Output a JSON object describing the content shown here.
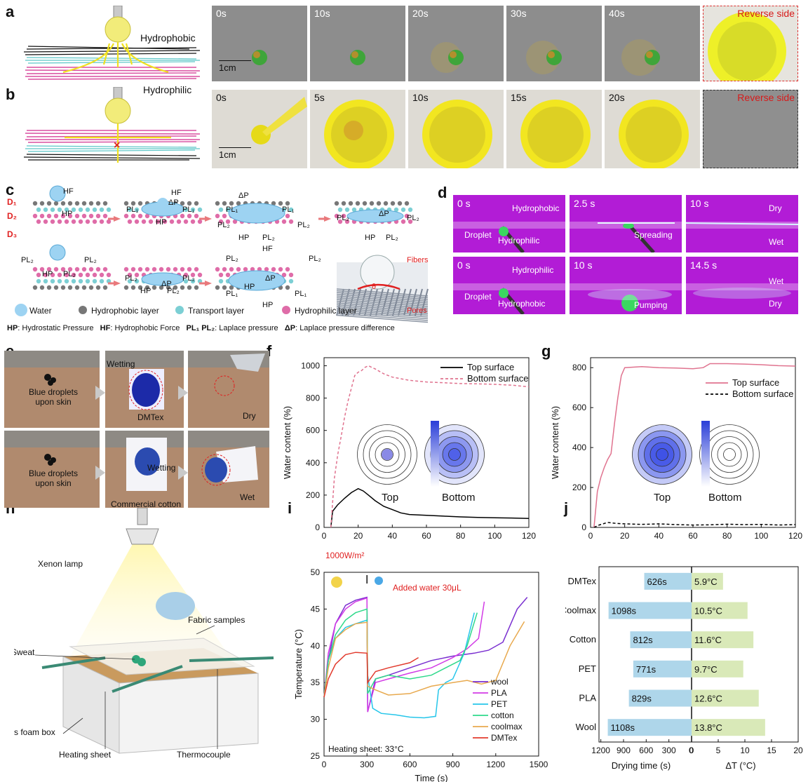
{
  "panel_letters": {
    "a": "a",
    "b": "b",
    "c": "c",
    "d": "d",
    "e": "e",
    "f": "f",
    "g": "g",
    "h": "h",
    "i": "i",
    "j": "j"
  },
  "panel_a": {
    "hydrophobic": "Hydrophobic",
    "frames": [
      "0s",
      "10s",
      "20s",
      "30s",
      "40s"
    ],
    "reverse": "Reverse side",
    "scale": "1cm"
  },
  "panel_b": {
    "hydrophilic": "Hydrophilic",
    "frames": [
      "0s",
      "5s",
      "10s",
      "15s",
      "20s"
    ],
    "reverse": "Reverse side",
    "scale": "1cm"
  },
  "panel_c": {
    "D1": "D₁",
    "D2": "D₂",
    "D3": "D₃",
    "HF": "HF",
    "HP": "HP",
    "PL1": "PL₁",
    "PL2": "PL₂",
    "dP": "ΔP",
    "fibers": "Fibers",
    "pores": "Pores",
    "theta": "θ",
    "legend": [
      "Water",
      "Hydrophobic layer",
      "Transport layer",
      "Hydrophilic layer"
    ],
    "abbrev_HP": "HP",
    "abbrev_HP_text": ": Hydrostatic Pressure",
    "abbrev_HF": "HF",
    "abbrev_HF_text": ": Hydrophobic Force",
    "abbrev_PL": "PL₁  PL₂",
    "abbrev_PL_text": ": Laplace pressure",
    "abbrev_dP": "ΔP",
    "abbrev_dP_text": ": Laplace pressure difference"
  },
  "panel_d": {
    "top": [
      {
        "time": "0 s",
        "labels": [
          "Hydrophobic",
          "Droplet",
          "Hydrophilic"
        ]
      },
      {
        "time": "2.5 s",
        "labels": [
          "Spreading"
        ]
      },
      {
        "time": "10 s",
        "labels": [
          "Dry",
          "Wet"
        ]
      }
    ],
    "bottom": [
      {
        "time": "0 s",
        "labels": [
          "Hydrophilic",
          "Droplet",
          "Hydrophobic"
        ]
      },
      {
        "time": "10 s",
        "labels": [
          "Pumping"
        ]
      },
      {
        "time": "14.5 s",
        "labels": [
          "Wet",
          "Dry"
        ]
      }
    ]
  },
  "panel_e": {
    "top": [
      "Blue droplets\nupon skin",
      "Wetting",
      "DMTex",
      "Dry"
    ],
    "bottom": [
      "Blue droplets\nupon skin",
      "Wetting",
      "Commercial cotton",
      "Wet"
    ]
  },
  "panel_h": {
    "labels": [
      "Xenon lamp",
      "Fabric samples",
      "Sweat",
      "Ps foam box",
      "Heating sheet",
      "Thermocouple"
    ]
  },
  "chart_data": [
    {
      "id": "f",
      "type": "line",
      "xlabel": "Time (s)",
      "ylabel": "Water content (%)",
      "xlim": [
        0,
        120
      ],
      "ylim": [
        0,
        1050
      ],
      "xticks": [
        0,
        20,
        40,
        60,
        80,
        100,
        120
      ],
      "yticks": [
        0,
        200,
        400,
        600,
        800,
        1000
      ],
      "legend": "top-right",
      "inset_labels": [
        "Top",
        "Bottom"
      ],
      "series": [
        {
          "name": "Top surface",
          "style": "solid",
          "color": "#000000",
          "x": [
            4,
            5,
            8,
            12,
            16,
            20,
            23,
            26,
            30,
            35,
            40,
            45,
            50,
            60,
            70,
            80,
            90,
            100,
            110,
            120
          ],
          "y": [
            0,
            100,
            140,
            180,
            215,
            240,
            225,
            200,
            165,
            130,
            110,
            90,
            80,
            75,
            70,
            65,
            62,
            60,
            58,
            55
          ]
        },
        {
          "name": "Bottom surface",
          "style": "dashed",
          "color": "#e0738f",
          "x": [
            4,
            6,
            8,
            10,
            12,
            14,
            16,
            18,
            20,
            22,
            24,
            26,
            30,
            35,
            40,
            50,
            60,
            70,
            80,
            90,
            100,
            110,
            120
          ],
          "y": [
            0,
            300,
            450,
            560,
            680,
            780,
            860,
            940,
            960,
            970,
            990,
            1000,
            980,
            950,
            930,
            910,
            900,
            895,
            890,
            888,
            885,
            880,
            870
          ]
        }
      ]
    },
    {
      "id": "g",
      "type": "line",
      "xlabel": "Time (s)",
      "ylabel": "Water content (%)",
      "xlim": [
        0,
        120
      ],
      "ylim": [
        0,
        850
      ],
      "xticks": [
        0,
        20,
        40,
        60,
        80,
        100,
        120
      ],
      "yticks": [
        0,
        200,
        400,
        600,
        800
      ],
      "legend": "top-right",
      "inset_labels": [
        "Top",
        "Bottom"
      ],
      "series": [
        {
          "name": "Top surface",
          "style": "solid",
          "color": "#e0738f",
          "x": [
            2,
            4,
            6,
            8,
            10,
            12,
            14,
            16,
            18,
            20,
            30,
            40,
            50,
            60,
            66,
            70,
            80,
            90,
            100,
            110,
            120
          ],
          "y": [
            0,
            180,
            250,
            300,
            340,
            370,
            520,
            650,
            760,
            800,
            805,
            800,
            798,
            795,
            800,
            820,
            820,
            818,
            815,
            810,
            808
          ]
        },
        {
          "name": "Bottom surface",
          "style": "dashed",
          "color": "#000000",
          "x": [
            2,
            5,
            10,
            15,
            20,
            30,
            40,
            50,
            60,
            70,
            80,
            90,
            100,
            110,
            120
          ],
          "y": [
            0,
            12,
            25,
            20,
            18,
            15,
            18,
            14,
            12,
            13,
            16,
            14,
            15,
            12,
            14
          ]
        }
      ]
    },
    {
      "id": "i",
      "type": "line",
      "xlabel": "Time (s)",
      "ylabel": "Temperature (°C)",
      "xlim": [
        0,
        1500
      ],
      "ylim": [
        25,
        50
      ],
      "xticks": [
        0,
        300,
        600,
        900,
        1200,
        1500
      ],
      "yticks": [
        25,
        30,
        35,
        40,
        45,
        50
      ],
      "annotation_power": "1000W/m²",
      "annotation_water": "Added water 30μL",
      "annotation_heat": "Heating sheet: 33°C",
      "legend": "bottom-right",
      "series": [
        {
          "name": "wool",
          "color": "#7a2fd0",
          "x": [
            0,
            30,
            80,
            150,
            220,
            300,
            305,
            360,
            450,
            600,
            750,
            900,
            1050,
            1150,
            1250,
            1350,
            1420
          ],
          "y": [
            33,
            38,
            43,
            45.5,
            46.2,
            46.6,
            31,
            35.5,
            36,
            37,
            38,
            38.6,
            39,
            39.4,
            40.5,
            45,
            46.6
          ]
        },
        {
          "name": "PLA",
          "color": "#d23be6",
          "x": [
            0,
            30,
            80,
            150,
            220,
            300,
            305,
            360,
            450,
            600,
            750,
            900,
            1000,
            1080,
            1120
          ],
          "y": [
            33,
            39,
            43,
            45,
            46,
            46.5,
            31,
            35,
            35.5,
            36.3,
            37,
            38.4,
            39.6,
            41,
            46
          ]
        },
        {
          "name": "PET",
          "color": "#26c6ea",
          "x": [
            0,
            30,
            80,
            150,
            220,
            300,
            305,
            340,
            400,
            500,
            600,
            700,
            780,
            800,
            850,
            900,
            980,
            1050
          ],
          "y": [
            33,
            38,
            41,
            42.5,
            43,
            43.5,
            36,
            31.5,
            30.8,
            30.6,
            30.3,
            30.2,
            30.4,
            34,
            35,
            35.5,
            39,
            44.5
          ]
        },
        {
          "name": "cotton",
          "color": "#2fd98b",
          "x": [
            0,
            30,
            80,
            150,
            220,
            300,
            305,
            360,
            450,
            600,
            750,
            850,
            950,
            1000,
            1070
          ],
          "y": [
            33,
            38,
            41.5,
            43.5,
            44.5,
            45,
            33.5,
            35.5,
            36,
            35.5,
            36,
            37,
            38,
            40,
            44.5
          ]
        },
        {
          "name": "coolmax",
          "color": "#e8a94e",
          "x": [
            0,
            30,
            80,
            150,
            220,
            300,
            305,
            360,
            450,
            600,
            750,
            900,
            1000,
            1100,
            1200,
            1300,
            1400
          ],
          "y": [
            33,
            37,
            41,
            42.2,
            43,
            43.2,
            34.5,
            34,
            33.3,
            33.5,
            34.5,
            35,
            35.3,
            34.8,
            35.3,
            40,
            43.3
          ]
        },
        {
          "name": "DMTex",
          "color": "#e23b2e",
          "x": [
            0,
            30,
            80,
            150,
            220,
            300,
            305,
            360,
            450,
            600,
            660
          ],
          "y": [
            33,
            35.5,
            37.5,
            38.8,
            39.1,
            39,
            35,
            36.5,
            37,
            37.7,
            38.4
          ]
        }
      ]
    },
    {
      "id": "j",
      "type": "bar",
      "categories": [
        "DMTex",
        "Coolmax",
        "Cotton",
        "PET",
        "PLA",
        "Wool"
      ],
      "series": [
        {
          "name": "Drying time (s)",
          "color": "#aed6ea",
          "values": [
            626,
            1098,
            812,
            771,
            829,
            1108
          ],
          "labels": [
            "626s",
            "1098s",
            "812s",
            "771s",
            "829s",
            "1108s"
          ]
        },
        {
          "name": "ΔT (°C)",
          "color": "#d9e9b8",
          "values": [
            5.9,
            10.5,
            11.6,
            9.7,
            12.6,
            13.8
          ],
          "labels": [
            "5.9°C",
            "10.5°C",
            "11.6°C",
            "9.7°C",
            "12.6°C",
            "13.8°C"
          ]
        }
      ],
      "xlabel_left": "Drying time (s)",
      "xlabel_right": "ΔT (°C)",
      "left_ticks": [
        "1200",
        "900",
        "600",
        "300",
        "0"
      ],
      "right_ticks": [
        "0",
        "5",
        "10",
        "15",
        "20"
      ],
      "left_range": [
        0,
        1200
      ],
      "right_range": [
        0,
        20
      ]
    }
  ]
}
